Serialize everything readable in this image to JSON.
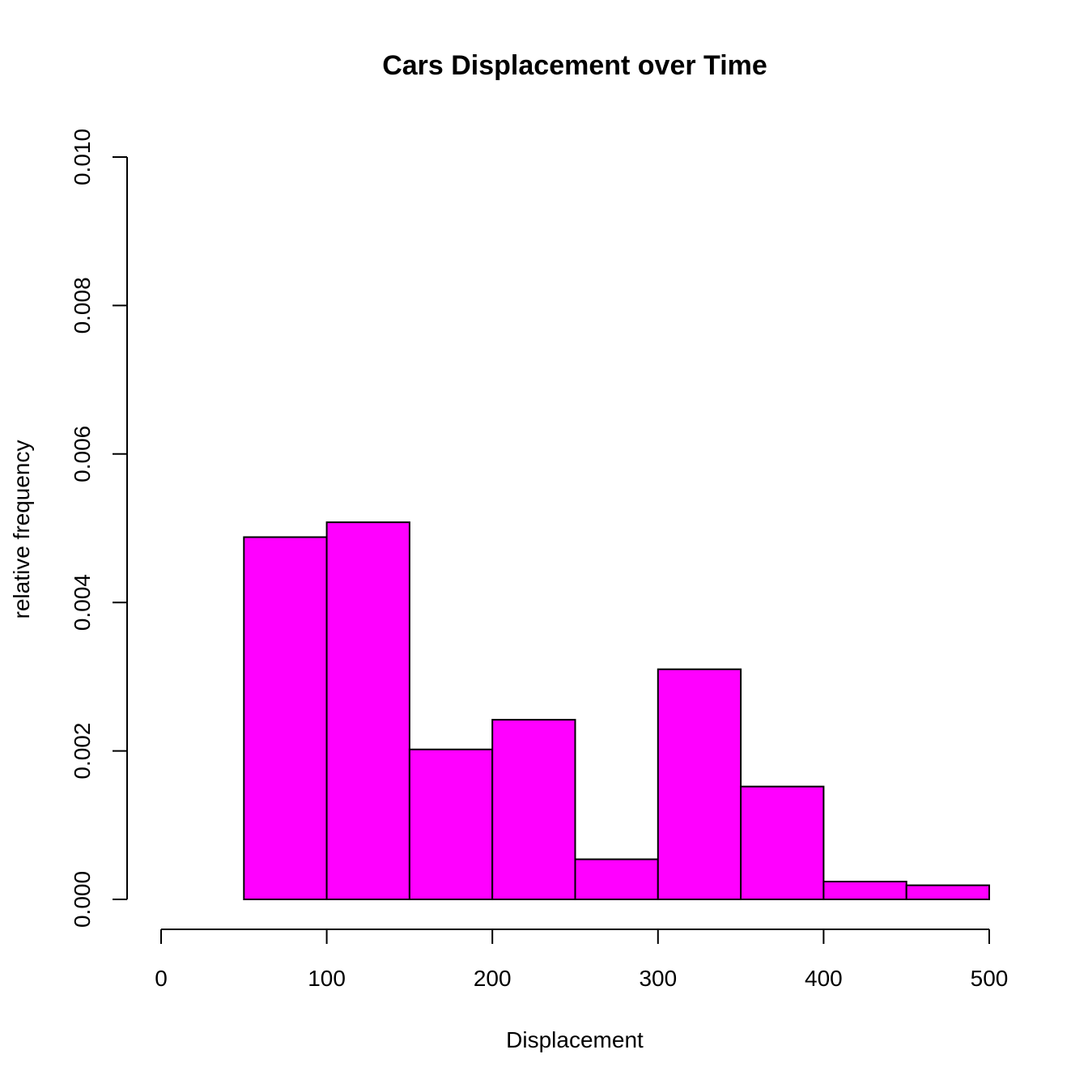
{
  "chart_data": {
    "type": "bar",
    "title": "Cars Displacement over Time",
    "xlabel": "Displacement",
    "ylabel": "relative frequency",
    "bins": [
      {
        "start": 50,
        "end": 100,
        "value": 0.00488
      },
      {
        "start": 100,
        "end": 150,
        "value": 0.00508
      },
      {
        "start": 150,
        "end": 200,
        "value": 0.00202
      },
      {
        "start": 200,
        "end": 250,
        "value": 0.00242
      },
      {
        "start": 250,
        "end": 300,
        "value": 0.00054
      },
      {
        "start": 300,
        "end": 350,
        "value": 0.0031
      },
      {
        "start": 350,
        "end": 400,
        "value": 0.00152
      },
      {
        "start": 400,
        "end": 450,
        "value": 0.00024
      },
      {
        "start": 450,
        "end": 500,
        "value": 0.00019
      }
    ],
    "xlim": [
      0,
      500
    ],
    "ylim": [
      0,
      0.01
    ],
    "xticks": [
      0,
      100,
      200,
      300,
      400,
      500
    ],
    "xtick_labels": [
      "0",
      "100",
      "200",
      "300",
      "400",
      "500"
    ],
    "yticks": [
      0,
      0.002,
      0.004,
      0.006,
      0.008,
      0.01
    ],
    "ytick_labels": [
      "0.000",
      "0.002",
      "0.004",
      "0.006",
      "0.008",
      "0.010"
    ],
    "bar_color": "#ff00ff",
    "edge_color": "#000000",
    "grid": false
  }
}
